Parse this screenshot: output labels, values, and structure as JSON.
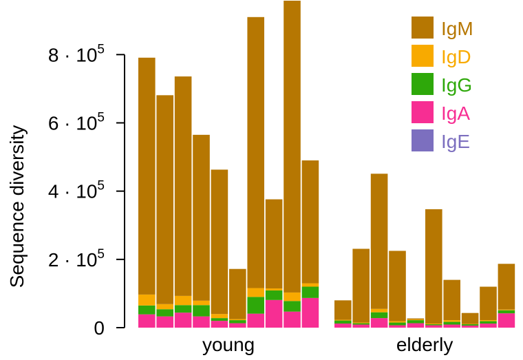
{
  "chart_data": {
    "type": "bar",
    "stacked": true,
    "ylabel": "Sequence diversity",
    "ylim": [
      0,
      960000
    ],
    "yticks": [
      {
        "value": 0,
        "label": "0"
      },
      {
        "value": 200000,
        "base": "2",
        "label": "2 · 10^5"
      },
      {
        "value": 400000,
        "base": "4",
        "label": "4 · 10^5"
      },
      {
        "value": 600000,
        "base": "6",
        "label": "6 · 10^5"
      },
      {
        "value": 800000,
        "base": "8",
        "label": "8 · 10^5"
      }
    ],
    "tick_multiplier": "· 10",
    "tick_exponent": "5",
    "groups": [
      {
        "label": "young",
        "bars": 10
      },
      {
        "label": "elderly",
        "bars": 10
      }
    ],
    "series": [
      {
        "name": "IgE",
        "color": "#7c6fbf",
        "values": [
          0,
          0,
          0,
          0,
          0,
          0,
          0,
          0,
          0,
          0,
          0,
          0,
          0,
          0,
          0,
          0,
          0,
          0,
          0,
          0
        ]
      },
      {
        "name": "IgA",
        "color": "#f72e93",
        "values": [
          39000,
          33000,
          44000,
          33000,
          20000,
          13000,
          41000,
          81000,
          47000,
          87000,
          12000,
          9000,
          28000,
          7000,
          13000,
          7000,
          9000,
          6000,
          12000,
          42000
        ]
      },
      {
        "name": "IgG",
        "color": "#2ea80a",
        "values": [
          26000,
          21000,
          22000,
          33000,
          8000,
          9000,
          49000,
          28000,
          31000,
          33000,
          9000,
          4000,
          17000,
          8000,
          9000,
          3000,
          8000,
          4000,
          7000,
          9000
        ]
      },
      {
        "name": "IgD",
        "color": "#f8aa00",
        "values": [
          32000,
          15000,
          27000,
          13000,
          12000,
          3000,
          26000,
          6000,
          25000,
          10000,
          2000,
          2000,
          10000,
          4000,
          2000,
          2000,
          5000,
          1000,
          3000,
          2000
        ]
      },
      {
        "name": "IgM",
        "color": "#b67702",
        "values": [
          694000,
          612000,
          643000,
          486000,
          423000,
          147000,
          794000,
          261000,
          855000,
          360000,
          57000,
          216000,
          396000,
          206000,
          3000,
          335000,
          118000,
          32000,
          98000,
          134000
        ]
      }
    ],
    "legend": {
      "position": "top-right",
      "entries": [
        {
          "name": "IgM",
          "color": "#b67702"
        },
        {
          "name": "IgD",
          "color": "#f8aa00"
        },
        {
          "name": "IgG",
          "color": "#2ea80a"
        },
        {
          "name": "IgA",
          "color": "#f72e93"
        },
        {
          "name": "IgE",
          "color": "#7c6fbf"
        }
      ]
    },
    "grid": false
  }
}
